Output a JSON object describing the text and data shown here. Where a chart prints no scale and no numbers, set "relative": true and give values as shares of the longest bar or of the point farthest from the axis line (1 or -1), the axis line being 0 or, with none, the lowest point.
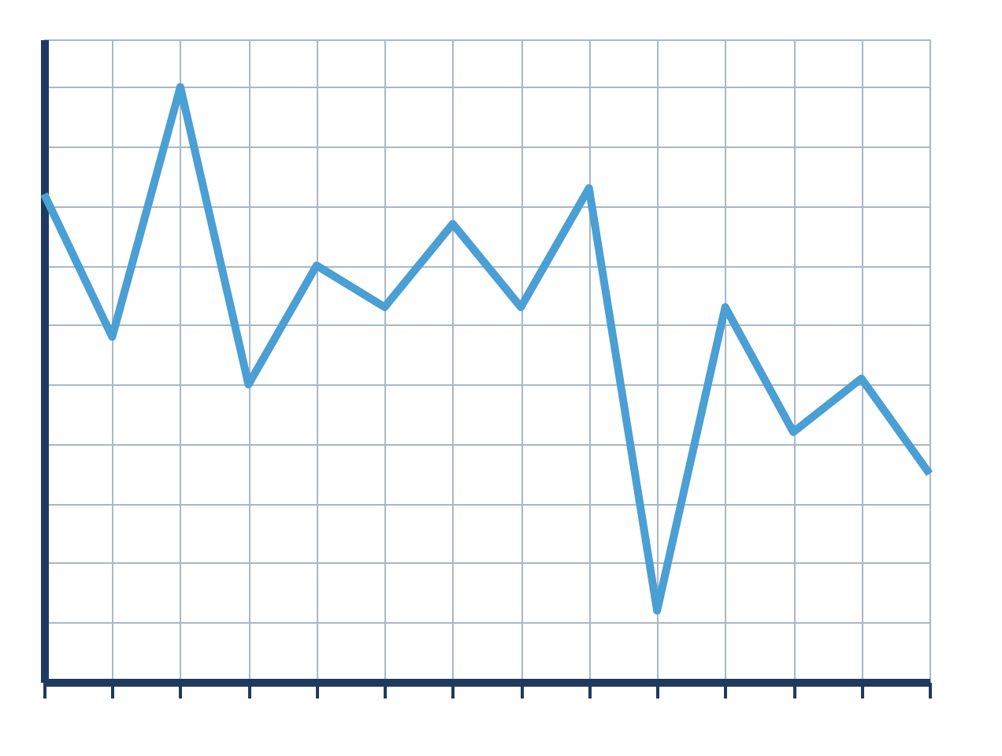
{
  "chart_data": {
    "type": "line",
    "relative": true,
    "categories": [
      null,
      null,
      null,
      null,
      null,
      null,
      null,
      null,
      null,
      null,
      null,
      null,
      null,
      null
    ],
    "series": [
      {
        "color": "#4a9fd4",
        "values": [
          0.82,
          0.58,
          1,
          0.5,
          0.7,
          0.63,
          0.77,
          0.63,
          0.83,
          0.12,
          0.63,
          0.42,
          0.51,
          0.35
        ]
      }
    ],
    "grid": true,
    "marker": "none",
    "line_style": "solid"
  }
}
